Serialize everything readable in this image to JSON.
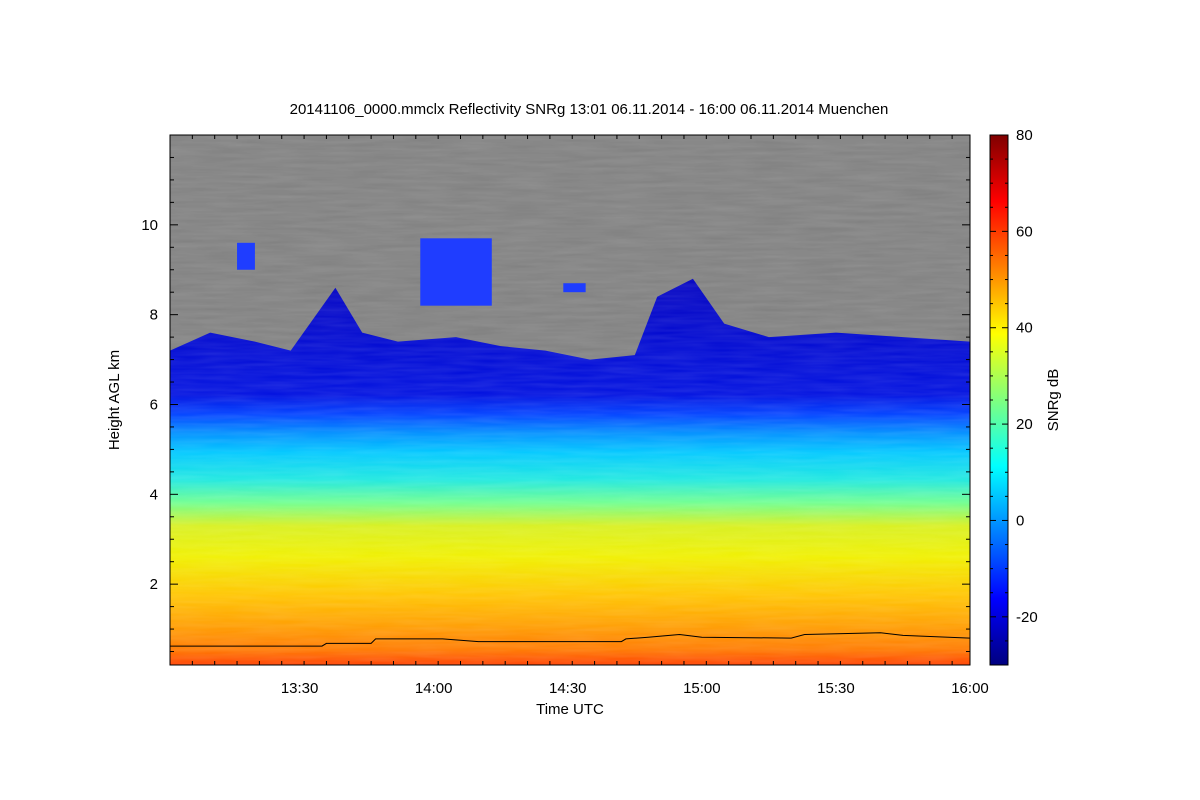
{
  "chart_data": {
    "type": "heatmap",
    "title": "20141106_0000.mmclx Reflectivity SNRg   13:01 06.11.2014 - 16:00 06.11.2014 Muenchen",
    "xlabel": "Time UTC",
    "ylabel": "Height AGL km",
    "colorbar_label": "SNRg dB",
    "xlim": [
      "13:01",
      "16:00"
    ],
    "ylim": [
      0.2,
      12.0
    ],
    "clim": [
      -30,
      80
    ],
    "x_ticks": [
      "13:30",
      "14:00",
      "14:30",
      "15:00",
      "15:30",
      "16:00"
    ],
    "y_ticks": [
      2,
      4,
      6,
      8,
      10
    ],
    "colorbar_ticks": [
      -20,
      0,
      20,
      40,
      60,
      80
    ],
    "no_signal_color": "#808080",
    "colormap": [
      "#00007f",
      "#0000ff",
      "#007fff",
      "#00ffff",
      "#7fff7f",
      "#ffff00",
      "#ff7f00",
      "#ff0000",
      "#7f0000"
    ],
    "cloud_top_km": [
      {
        "t": "13:01",
        "h": 7.2
      },
      {
        "t": "13:10",
        "h": 7.6
      },
      {
        "t": "13:20",
        "h": 7.4
      },
      {
        "t": "13:28",
        "h": 7.2
      },
      {
        "t": "13:38",
        "h": 8.6
      },
      {
        "t": "13:44",
        "h": 7.6
      },
      {
        "t": "13:52",
        "h": 7.4
      },
      {
        "t": "14:05",
        "h": 7.5
      },
      {
        "t": "14:15",
        "h": 7.3
      },
      {
        "t": "14:25",
        "h": 7.2
      },
      {
        "t": "14:35",
        "h": 7.0
      },
      {
        "t": "14:45",
        "h": 7.1
      },
      {
        "t": "14:50",
        "h": 8.4
      },
      {
        "t": "14:58",
        "h": 8.8
      },
      {
        "t": "15:05",
        "h": 7.8
      },
      {
        "t": "15:15",
        "h": 7.5
      },
      {
        "t": "15:30",
        "h": 7.6
      },
      {
        "t": "15:45",
        "h": 7.5
      },
      {
        "t": "16:00",
        "h": 7.4
      }
    ],
    "detached_cloud_patches": [
      {
        "t_start": "13:16",
        "t_end": "13:20",
        "h_bottom": 9.0,
        "h_top": 9.6
      },
      {
        "t_start": "13:57",
        "t_end": "14:13",
        "h_bottom": 8.2,
        "h_top": 9.7
      },
      {
        "t_start": "14:29",
        "t_end": "14:34",
        "h_bottom": 8.5,
        "h_top": 8.7
      }
    ],
    "layers": [
      {
        "h_bottom": 0.2,
        "h_top": 0.9,
        "snr_db": 62
      },
      {
        "h_bottom": 0.9,
        "h_top": 2.0,
        "snr_db": 50
      },
      {
        "h_bottom": 2.0,
        "h_top": 4.0,
        "snr_db": 40
      },
      {
        "h_bottom": 4.0,
        "h_top": 5.5,
        "snr_db": 22
      },
      {
        "h_bottom": 5.5,
        "h_top": 6.5,
        "snr_db": 8
      },
      {
        "h_bottom": 6.5,
        "h_top": 7.5,
        "snr_db": -15
      }
    ],
    "boundary_line_km": [
      {
        "t": "13:01",
        "h": 0.62
      },
      {
        "t": "13:35",
        "h": 0.62
      },
      {
        "t": "13:36",
        "h": 0.68
      },
      {
        "t": "13:46",
        "h": 0.68
      },
      {
        "t": "13:47",
        "h": 0.78
      },
      {
        "t": "14:02",
        "h": 0.78
      },
      {
        "t": "14:10",
        "h": 0.72
      },
      {
        "t": "14:42",
        "h": 0.72
      },
      {
        "t": "14:43",
        "h": 0.78
      },
      {
        "t": "14:48",
        "h": 0.82
      },
      {
        "t": "14:55",
        "h": 0.88
      },
      {
        "t": "15:00",
        "h": 0.82
      },
      {
        "t": "15:20",
        "h": 0.8
      },
      {
        "t": "15:23",
        "h": 0.88
      },
      {
        "t": "15:40",
        "h": 0.92
      },
      {
        "t": "15:45",
        "h": 0.86
      },
      {
        "t": "16:00",
        "h": 0.8
      }
    ],
    "grid": false,
    "colorbar_position": "right"
  }
}
